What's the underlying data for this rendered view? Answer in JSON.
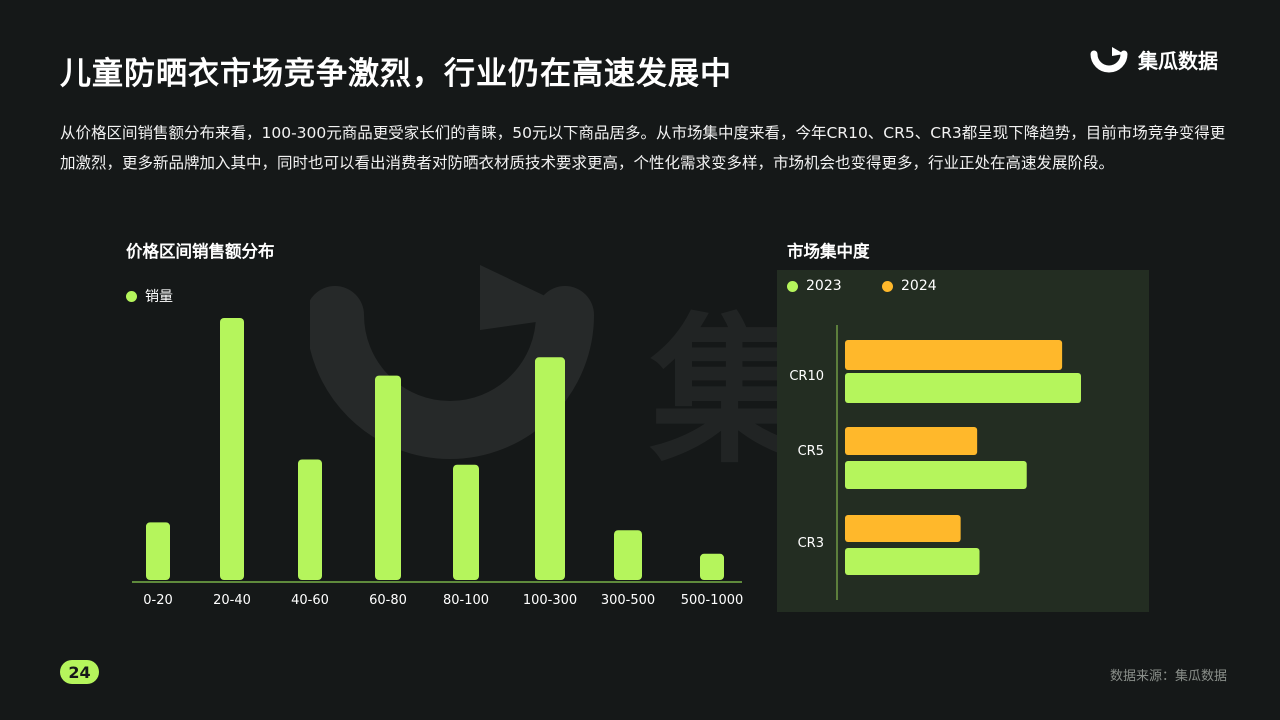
{
  "header": {
    "title": "儿童防晒衣市场竞争激烈，行业仍在高速发展中",
    "logo_text": "集瓜数据"
  },
  "description": "从价格区间销售额分布来看，100-300元商品更受家长们的青睐，50元以下商品居多。从市场集中度来看，今年CR10、CR5、CR3都呈现下降趋势，目前市场竞争变得更加激烈，更多新品牌加入其中，同时也可以看出消费者对防晒衣材质技术要求更高，个性化需求变多样，市场机会也变得更多，行业正处在高速发展阶段。",
  "watermark_text": "集瓜",
  "colors": {
    "accent_green": "#b5f55c",
    "accent_orange": "#ffb82b",
    "background": "#151818",
    "panel": "#232d22"
  },
  "chart_data": [
    {
      "type": "bar",
      "title": "价格区间销售额分布",
      "categories": [
        "0-20",
        "20-40",
        "40-60",
        "60-80",
        "80-100",
        "100-300",
        "300-500",
        "500-1000"
      ],
      "series": [
        {
          "name": "销量",
          "values": [
            22,
            100,
            46,
            78,
            44,
            85,
            19,
            10
          ]
        }
      ],
      "ylim": [
        0,
        100
      ],
      "grid": false,
      "legend": "top-left"
    },
    {
      "type": "bar",
      "orientation": "horizontal",
      "title": "市场集中度",
      "categories": [
        "CR10",
        "CR5",
        "CR3"
      ],
      "series": [
        {
          "name": "2023",
          "values": [
            100,
            77,
            57
          ]
        },
        {
          "name": "2024",
          "values": [
            92,
            56,
            49
          ]
        }
      ],
      "xlim": [
        0,
        100
      ],
      "grid": false,
      "legend": "top-left"
    }
  ],
  "footer": {
    "page_number": "24",
    "source": "数据来源：集瓜数据"
  }
}
